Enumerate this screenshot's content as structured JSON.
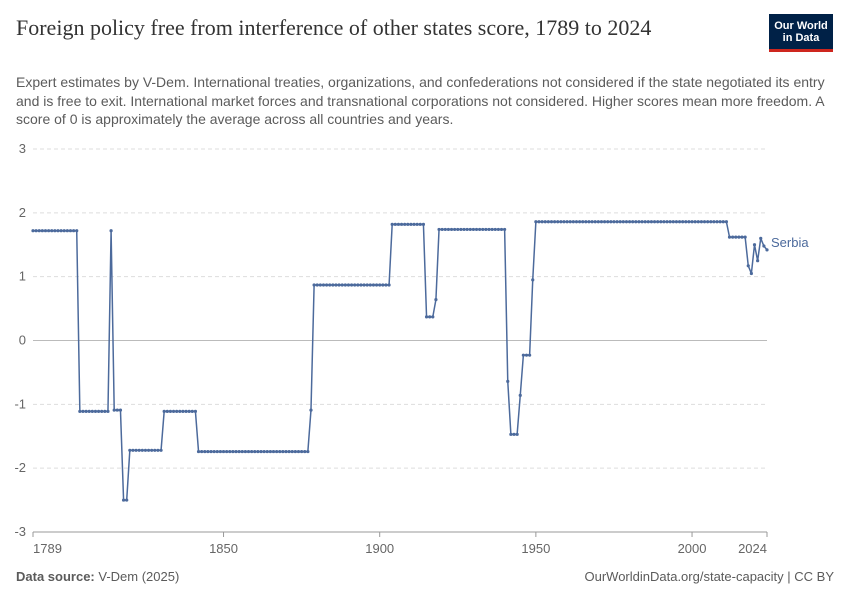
{
  "title": "Foreign policy free from interference of other states score, 1789 to 2024",
  "subtitle": "Expert estimates by V-Dem. International treaties, organizations, and confederations not considered if the state negotiated its entry and is free to exit. International market forces and transnational corporations not considered. Higher scores mean more freedom. A score of 0 is approximately the average across all countries and years.",
  "logo": {
    "line1": "Our World",
    "line2": "in Data"
  },
  "footer": {
    "source_label": "Data source:",
    "source_value": "V-Dem (2025)",
    "url": "OurWorldinData.org/state-capacity | CC BY"
  },
  "colors": {
    "series": "#4c6a9c",
    "grid": "#dddddd",
    "zero": "#bbbbbb",
    "text": "#666666"
  },
  "chart_data": {
    "type": "line",
    "xlim": [
      1789,
      2024
    ],
    "ylim": [
      -3,
      3
    ],
    "x_ticks": [
      1789,
      1850,
      1900,
      1950,
      2000,
      2024
    ],
    "y_ticks": [
      3,
      2,
      1,
      0,
      -1,
      -2,
      -3
    ],
    "grid": true,
    "series": [
      {
        "name": "Serbia",
        "segments": [
          [
            1789,
            1803,
            1.72
          ],
          [
            1804,
            1813,
            -1.11
          ],
          [
            1814,
            1814,
            1.72
          ],
          [
            1815,
            1817,
            -1.09
          ],
          [
            1818,
            1819,
            -2.5
          ],
          [
            1820,
            1830,
            -1.72
          ],
          [
            1831,
            1841,
            -1.11
          ],
          [
            1842,
            1877,
            -1.74
          ],
          [
            1878,
            1878,
            -1.09
          ],
          [
            1879,
            1903,
            0.87
          ],
          [
            1904,
            1914,
            1.82
          ],
          [
            1915,
            1917,
            0.37
          ],
          [
            1918,
            1918,
            0.64
          ],
          [
            1919,
            1940,
            1.74
          ],
          [
            1941,
            1941,
            -0.64
          ],
          [
            1942,
            1944,
            -1.47
          ],
          [
            1945,
            1945,
            -0.86
          ],
          [
            1946,
            1948,
            -0.23
          ],
          [
            1949,
            1949,
            0.95
          ],
          [
            1950,
            2011,
            1.86
          ],
          [
            2012,
            2017,
            1.62
          ],
          [
            2018,
            2018,
            1.17
          ],
          [
            2019,
            2019,
            1.05
          ],
          [
            2020,
            2020,
            1.5
          ],
          [
            2021,
            2021,
            1.25
          ],
          [
            2022,
            2022,
            1.6
          ],
          [
            2023,
            2023,
            1.48
          ],
          [
            2024,
            2024,
            1.42
          ]
        ]
      }
    ]
  }
}
